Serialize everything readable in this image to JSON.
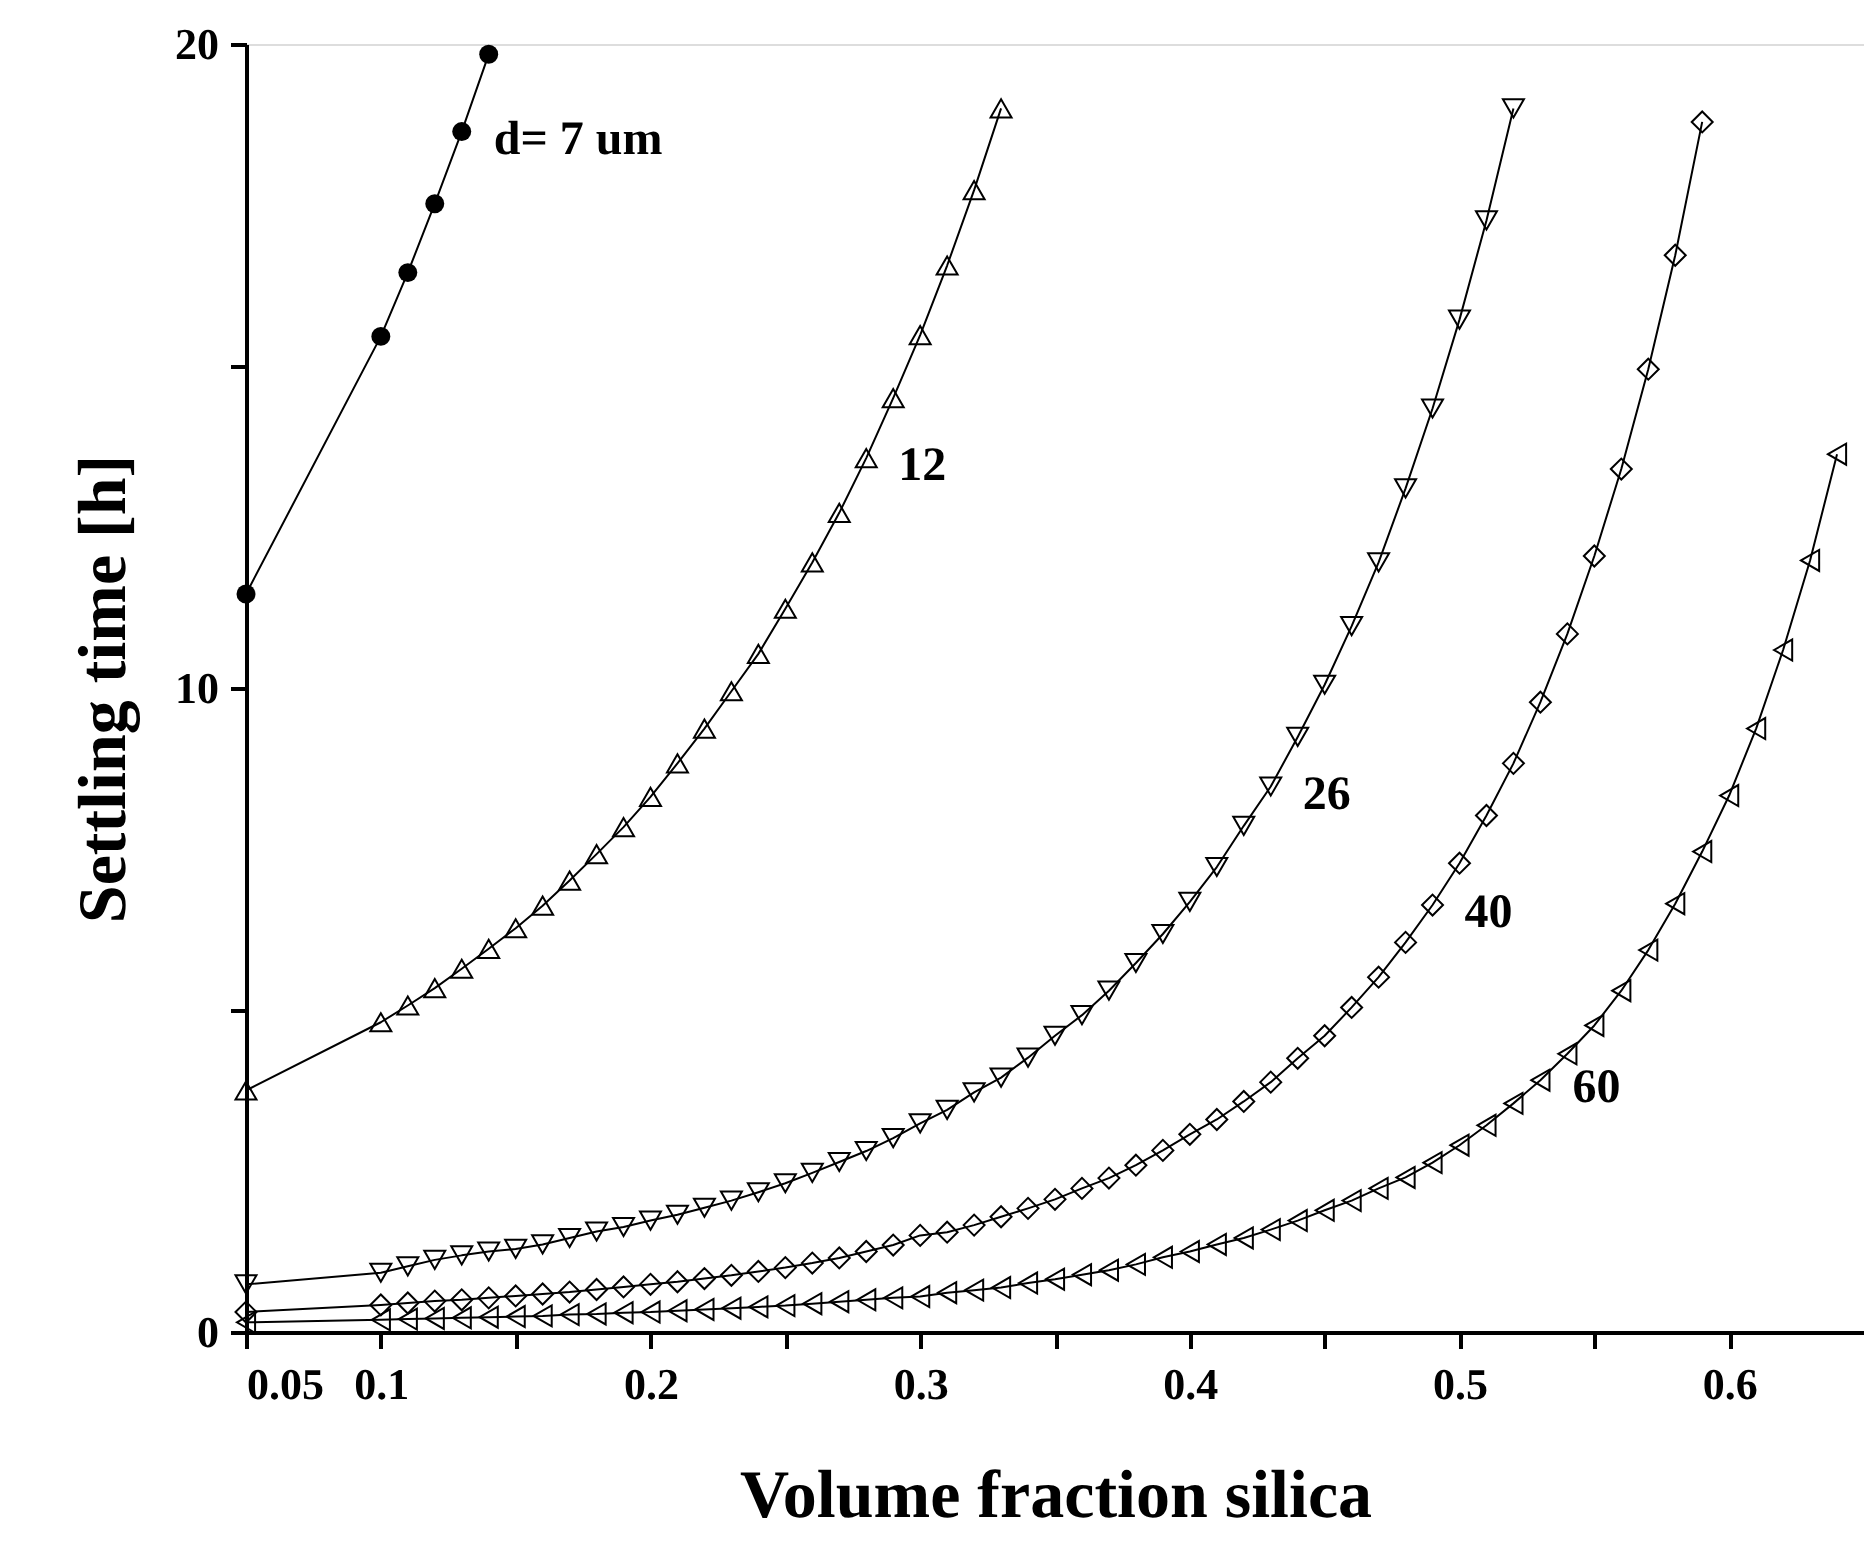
{
  "chart_data": {
    "type": "line",
    "xlabel": "Volume fraction silica",
    "ylabel": "Settling time [h]",
    "xlim": [
      0.05,
      0.65
    ],
    "ylim": [
      0,
      20
    ],
    "xticks": [
      {
        "value": 0.05,
        "label": "0.05"
      },
      0.1,
      {
        "value": 0.15,
        "label": null
      },
      0.2,
      {
        "value": 0.25,
        "label": null
      },
      0.3,
      {
        "value": 0.35,
        "label": null
      },
      0.4,
      {
        "value": 0.45,
        "label": null
      },
      0.5,
      {
        "value": 0.55,
        "label": null
      },
      0.6
    ],
    "yticks": [
      0,
      {
        "value": 5,
        "label": null
      },
      10,
      {
        "value": 15,
        "label": null
      },
      20
    ],
    "grid": false,
    "line_style": "solid",
    "series": [
      {
        "name": "d= 7 um",
        "color": "#000000",
        "marker": "circle",
        "x": [
          0.05,
          0.1,
          0.11,
          0.12,
          0.13,
          0.14
        ],
        "values": [
          11.46,
          15.46,
          16.45,
          17.52,
          18.64,
          19.84
        ]
      },
      {
        "name": "12",
        "color": "#000000",
        "marker": "triangle-up",
        "x": [
          0.05,
          0.1,
          0.11,
          0.12,
          0.13,
          0.14,
          0.15,
          0.16,
          0.17,
          0.18,
          0.19,
          0.2,
          0.21,
          0.22,
          0.23,
          0.24,
          0.25,
          0.26,
          0.27,
          0.28,
          0.29,
          0.3,
          0.31,
          0.32,
          0.33
        ],
        "values": [
          3.75,
          4.81,
          5.07,
          5.34,
          5.64,
          5.95,
          6.27,
          6.62,
          7.01,
          7.42,
          7.84,
          8.31,
          8.83,
          9.37,
          9.95,
          10.53,
          11.23,
          11.95,
          12.72,
          13.57,
          14.5,
          15.48,
          16.56,
          17.73,
          19.0
        ]
      },
      {
        "name": "26",
        "color": "#000000",
        "marker": "triangle-down",
        "x": [
          0.05,
          0.1,
          0.11,
          0.12,
          0.13,
          0.14,
          0.15,
          0.16,
          0.17,
          0.18,
          0.19,
          0.2,
          0.21,
          0.22,
          0.23,
          0.24,
          0.25,
          0.26,
          0.27,
          0.28,
          0.29,
          0.3,
          0.31,
          0.32,
          0.33,
          0.34,
          0.35,
          0.36,
          0.37,
          0.38,
          0.39,
          0.4,
          0.41,
          0.42,
          0.43,
          0.44,
          0.45,
          0.46,
          0.47,
          0.48,
          0.49,
          0.5,
          0.51,
          0.52
        ],
        "values": [
          0.74,
          0.92,
          1.02,
          1.12,
          1.19,
          1.25,
          1.29,
          1.36,
          1.46,
          1.56,
          1.63,
          1.73,
          1.82,
          1.93,
          2.04,
          2.17,
          2.31,
          2.47,
          2.64,
          2.81,
          3.01,
          3.24,
          3.45,
          3.72,
          3.95,
          4.26,
          4.6,
          4.92,
          5.3,
          5.73,
          6.18,
          6.68,
          7.22,
          7.86,
          8.47,
          9.24,
          10.05,
          10.96,
          11.95,
          13.1,
          14.34,
          15.72,
          17.26,
          19.0
        ]
      },
      {
        "name": "40",
        "color": "#000000",
        "marker": "diamond",
        "x": [
          0.05,
          0.1,
          0.11,
          0.12,
          0.13,
          0.14,
          0.15,
          0.16,
          0.17,
          0.18,
          0.19,
          0.2,
          0.21,
          0.22,
          0.23,
          0.24,
          0.25,
          0.26,
          0.27,
          0.28,
          0.29,
          0.3,
          0.31,
          0.32,
          0.33,
          0.34,
          0.35,
          0.36,
          0.37,
          0.38,
          0.39,
          0.4,
          0.41,
          0.42,
          0.43,
          0.44,
          0.45,
          0.46,
          0.47,
          0.48,
          0.49,
          0.5,
          0.51,
          0.52,
          0.53,
          0.54,
          0.55,
          0.56,
          0.57,
          0.58,
          0.59
        ],
        "values": [
          0.31,
          0.42,
          0.45,
          0.48,
          0.5,
          0.53,
          0.56,
          0.59,
          0.62,
          0.66,
          0.7,
          0.74,
          0.78,
          0.83,
          0.88,
          0.94,
          1.0,
          1.07,
          1.15,
          1.25,
          1.35,
          1.5,
          1.55,
          1.66,
          1.79,
          1.92,
          2.06,
          2.23,
          2.39,
          2.59,
          2.82,
          3.07,
          3.3,
          3.58,
          3.88,
          4.25,
          4.6,
          5.04,
          5.51,
          6.05,
          6.63,
          7.28,
          8.02,
          8.83,
          9.78,
          10.84,
          12.05,
          13.4,
          14.95,
          16.72,
          18.79
        ]
      },
      {
        "name": "60",
        "color": "#000000",
        "marker": "triangle-left",
        "x": [
          0.05,
          0.1,
          0.11,
          0.12,
          0.13,
          0.14,
          0.15,
          0.16,
          0.17,
          0.18,
          0.19,
          0.2,
          0.21,
          0.22,
          0.23,
          0.24,
          0.25,
          0.26,
          0.27,
          0.28,
          0.29,
          0.3,
          0.31,
          0.32,
          0.33,
          0.34,
          0.35,
          0.36,
          0.37,
          0.38,
          0.39,
          0.4,
          0.41,
          0.42,
          0.43,
          0.44,
          0.45,
          0.46,
          0.47,
          0.48,
          0.49,
          0.5,
          0.51,
          0.52,
          0.53,
          0.54,
          0.55,
          0.56,
          0.57,
          0.58,
          0.59,
          0.6,
          0.61,
          0.62,
          0.63,
          0.64
        ],
        "values": [
          0.15,
          0.19,
          0.2,
          0.21,
          0.22,
          0.23,
          0.24,
          0.25,
          0.27,
          0.28,
          0.3,
          0.31,
          0.33,
          0.35,
          0.37,
          0.39,
          0.41,
          0.44,
          0.47,
          0.5,
          0.53,
          0.55,
          0.61,
          0.65,
          0.69,
          0.76,
          0.82,
          0.89,
          0.96,
          1.05,
          1.16,
          1.25,
          1.36,
          1.46,
          1.59,
          1.73,
          1.89,
          2.04,
          2.23,
          2.4,
          2.63,
          2.9,
          3.21,
          3.55,
          3.91,
          4.32,
          4.76,
          5.3,
          5.93,
          6.65,
          7.46,
          8.33,
          9.37,
          10.59,
          11.98,
          13.63
        ]
      }
    ]
  }
}
